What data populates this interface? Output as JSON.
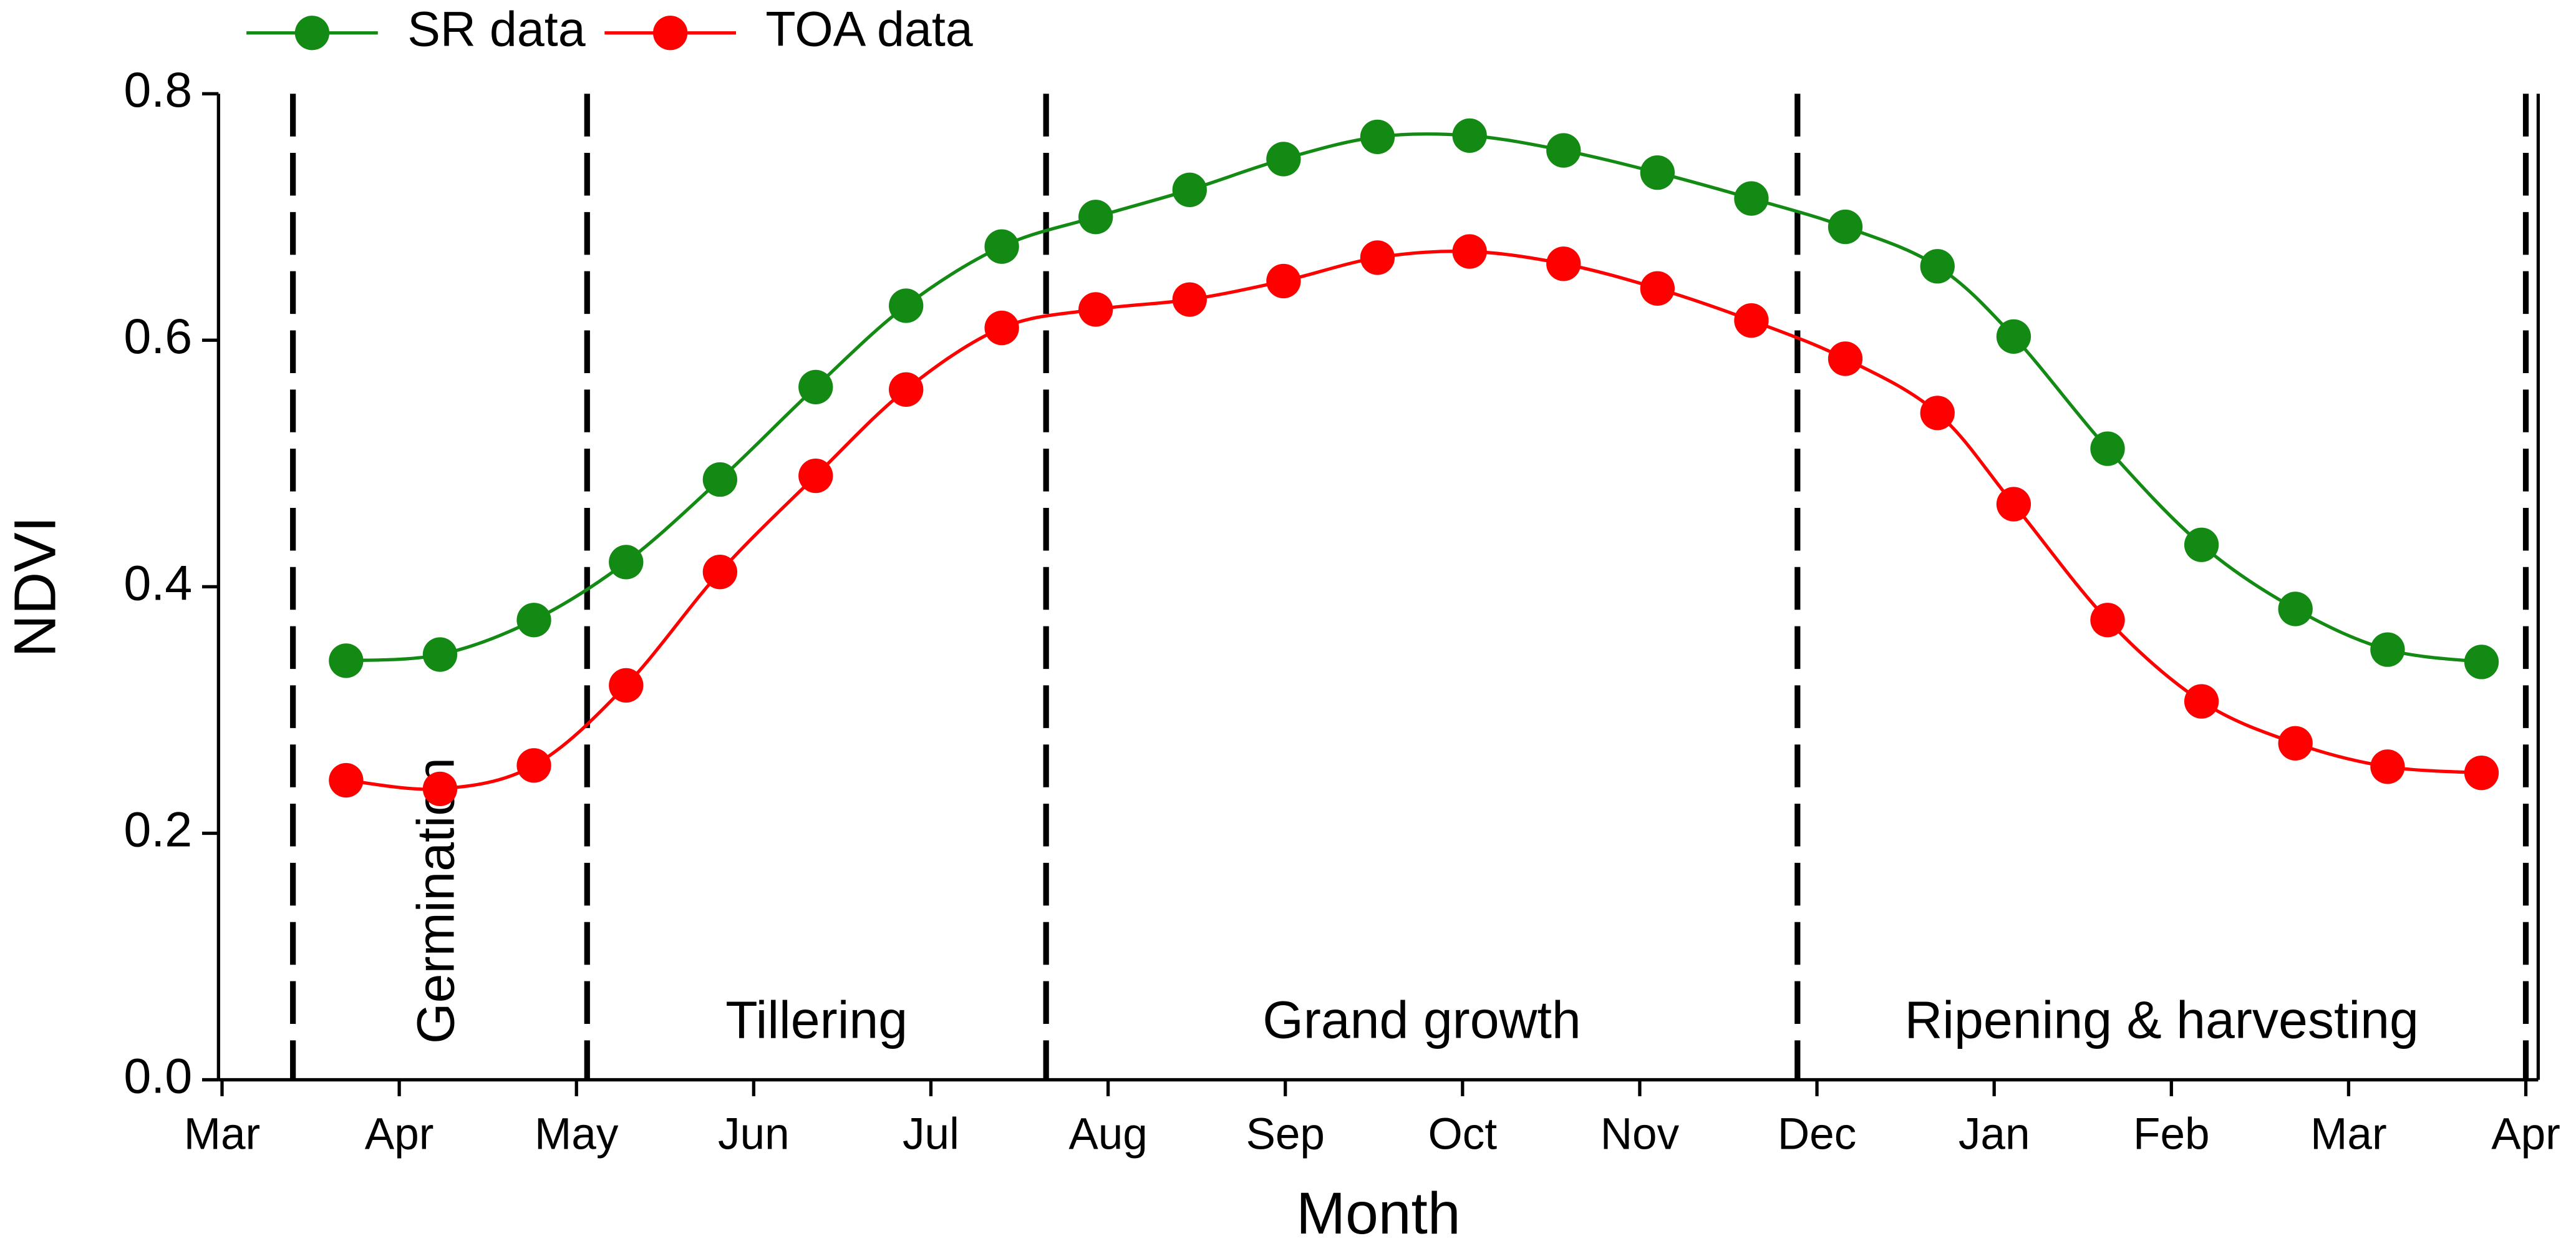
{
  "chart_data": {
    "type": "line",
    "xlabel": "Month",
    "ylabel": "NDVI",
    "x": [
      0.7,
      1.23,
      1.76,
      2.28,
      2.81,
      3.35,
      3.86,
      4.4,
      4.93,
      5.46,
      5.99,
      6.52,
      7.04,
      7.57,
      8.1,
      8.63,
      9.16,
      9.68,
      10.11,
      10.64,
      11.17,
      11.7,
      12.22,
      12.75
    ],
    "series": [
      {
        "name": "SR data",
        "color": "#138a13",
        "values": [
          0.34,
          0.345,
          0.373,
          0.42,
          0.487,
          0.562,
          0.628,
          0.676,
          0.7,
          0.722,
          0.747,
          0.765,
          0.766,
          0.754,
          0.736,
          0.715,
          0.692,
          0.66,
          0.603,
          0.512,
          0.434,
          0.382,
          0.349,
          0.339
        ]
      },
      {
        "name": "TOA data",
        "color": "#ff0000",
        "values": [
          0.243,
          0.236,
          0.255,
          0.32,
          0.412,
          0.49,
          0.56,
          0.61,
          0.625,
          0.633,
          0.648,
          0.667,
          0.672,
          0.662,
          0.642,
          0.616,
          0.585,
          0.541,
          0.467,
          0.373,
          0.307,
          0.273,
          0.254,
          0.249
        ]
      }
    ],
    "xlim": [
      -0.02,
      13.07
    ],
    "xticks": [
      {
        "value": 0,
        "label": "Mar"
      },
      {
        "value": 1,
        "label": "Apr"
      },
      {
        "value": 2,
        "label": "May"
      },
      {
        "value": 3,
        "label": "Jun"
      },
      {
        "value": 4,
        "label": "Jul"
      },
      {
        "value": 5,
        "label": "Aug"
      },
      {
        "value": 6,
        "label": "Sep"
      },
      {
        "value": 7,
        "label": "Oct"
      },
      {
        "value": 8,
        "label": "Nov"
      },
      {
        "value": 9,
        "label": "Dec"
      },
      {
        "value": 10,
        "label": "Jan"
      },
      {
        "value": 11,
        "label": "Feb"
      },
      {
        "value": 12,
        "label": "Mar"
      },
      {
        "value": 13,
        "label": "Apr"
      }
    ],
    "ylim": [
      0,
      0.8
    ],
    "yticks": [
      {
        "value": 0,
        "label": "0.0"
      },
      0.2,
      0.4,
      0.6,
      0.8
    ],
    "phase_boundaries": [
      0.4,
      2.06,
      4.65,
      8.89,
      13.0
    ],
    "phases": [
      "Germination",
      "Tillering",
      "Grand growth",
      "Ripening & harvesting"
    ],
    "legend": "top-left"
  }
}
